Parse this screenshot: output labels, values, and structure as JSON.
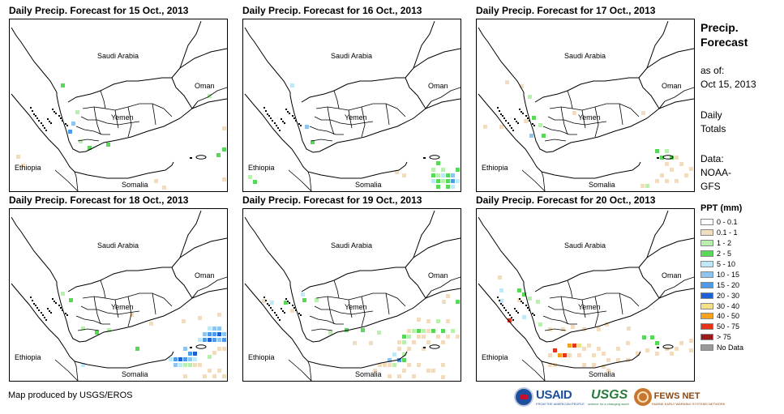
{
  "panels": [
    {
      "title": "Daily Precip. Forecast for 15 Oct., 2013",
      "day": 0
    },
    {
      "title": "Daily Precip. Forecast for 16 Oct., 2013",
      "day": 1
    },
    {
      "title": "Daily Precip. Forecast for 17 Oct., 2013",
      "day": 2
    },
    {
      "title": "Daily Precip. Forecast for 18 Oct., 2013",
      "day": 3
    },
    {
      "title": "Daily Precip. Forecast for 19 Oct., 2013",
      "day": 4
    },
    {
      "title": "Daily Precip. Forecast for 20 Oct., 2013",
      "day": 5
    }
  ],
  "map_labels": {
    "saudi": "Saudi Arabia",
    "oman": "Oman",
    "yemen": "Yemen",
    "ethiopia": "Ethiopia",
    "somalia": "Somalia"
  },
  "legend": {
    "title_line1": "Precip.",
    "title_line2": "Forecast",
    "asof_label": "as of:",
    "asof_date": "Oct 15, 2013",
    "totals_line1": "Daily",
    "totals_line2": "Totals",
    "data_line1": "Data:",
    "data_line2": "NOAA-",
    "data_line3": "GFS",
    "ppt_title": "PPT (mm)",
    "classes": [
      {
        "label": "0 - 0.1",
        "color": "#ffffff"
      },
      {
        "label": "0.1 - 1",
        "color": "#f2dcc0"
      },
      {
        "label": "1 - 2",
        "color": "#b9f0b0"
      },
      {
        "label": "2 - 5",
        "color": "#57d957"
      },
      {
        "label": "5 - 10",
        "color": "#bfe9f8"
      },
      {
        "label": "10 - 15",
        "color": "#8ec5f0"
      },
      {
        "label": "15 - 20",
        "color": "#4c9ae8"
      },
      {
        "label": "20 - 30",
        "color": "#1f5fd6"
      },
      {
        "label": "30 - 40",
        "color": "#f5e08a"
      },
      {
        "label": "40 - 50",
        "color": "#f5a21a"
      },
      {
        "label": "50 - 75",
        "color": "#e8321a"
      },
      {
        "label": "> 75",
        "color": "#9a1a1a"
      },
      {
        "label": "No Data",
        "color": "#999999"
      }
    ]
  },
  "credit": "Map produced by USGS/EROS",
  "logos": {
    "usaid": "USAID",
    "usaid_sub": "FROM THE AMERICAN PEOPLE",
    "usgs": "USGS",
    "usgs_sub": "science for a changing world",
    "fews": "FEWS NET",
    "fews_sub": "FAMINE EARLY WARNING SYSTEMS NETWORK"
  }
}
